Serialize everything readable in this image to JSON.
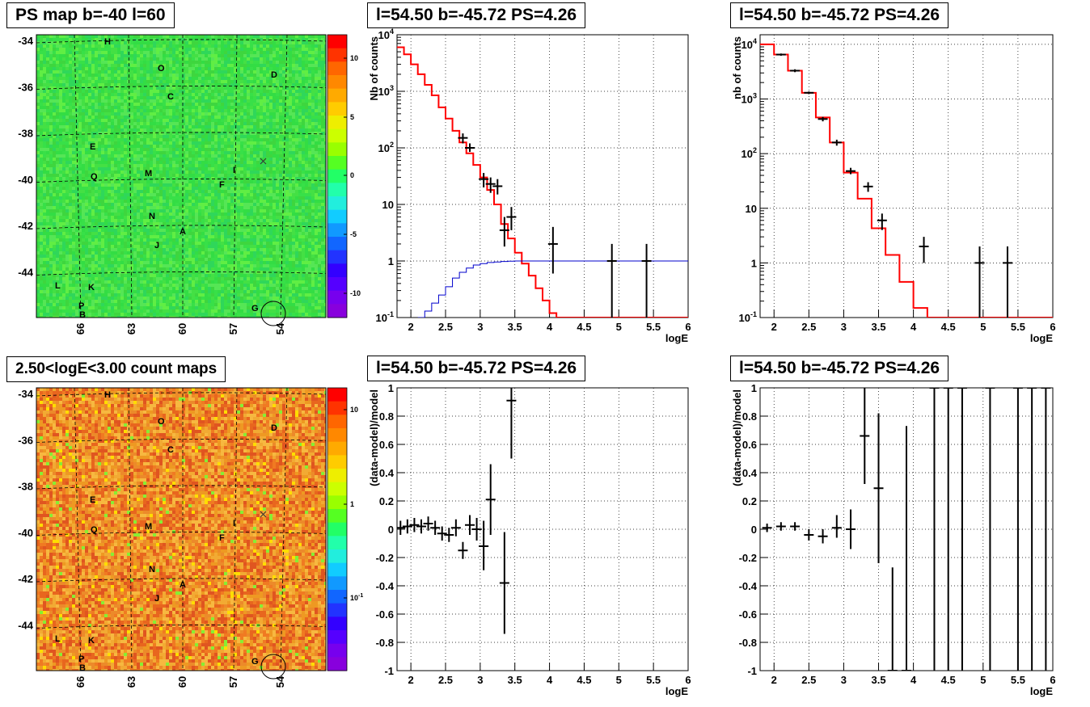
{
  "panels": {
    "map_top_title": "PS map b=-40 l=60",
    "spec_left_title": "l=54.50 b=-45.72 PS=4.26",
    "spec_right_title": "l=54.50 b=-45.72 PS=4.26",
    "map_bottom_title": "2.50<logE<3.00 count maps",
    "resid_left_title": "l=54.50 b=-45.72 PS=4.26",
    "resid_right_title": "l=54.50 b=-45.72 PS=4.26"
  },
  "colors": {
    "model_line": "#ff0000",
    "exposure_line": "#0000cc",
    "data_points": "#000000",
    "map_top_bg": "#33dd33",
    "map_bottom_bg": "#ee8822"
  },
  "chart_data": [
    {
      "id": "map_top",
      "type": "heatmap",
      "title": "PS map b=-40 l=60",
      "x_tick_labels": [
        "66",
        "63",
        "60",
        "57",
        "54"
      ],
      "y_tick_labels": [
        "-34",
        "-36",
        "-38",
        "-40",
        "-42",
        "-44"
      ],
      "colorbar_ticks": [
        "10",
        "5",
        "0",
        "-5",
        "-10"
      ],
      "colorbar_scale": "linear",
      "colorbar_range": [
        -13,
        13
      ],
      "markers": [
        "H",
        "O",
        "D",
        "C",
        "E",
        "M",
        "I",
        "Q",
        "F",
        "N",
        "A",
        "J",
        "L",
        "K",
        "P",
        "B",
        "G"
      ]
    },
    {
      "id": "map_bottom",
      "type": "heatmap",
      "title": "2.50<logE<3.00 count maps",
      "x_tick_labels": [
        "66",
        "63",
        "60",
        "57",
        "54"
      ],
      "y_tick_labels": [
        "-34",
        "-36",
        "-38",
        "-40",
        "-42",
        "-44"
      ],
      "colorbar_ticks": [
        "10",
        "1",
        "10-1"
      ],
      "colorbar_scale": "log",
      "markers": [
        "H",
        "O",
        "D",
        "C",
        "E",
        "M",
        "I",
        "Q",
        "F",
        "N",
        "A",
        "J",
        "L",
        "K",
        "P",
        "B",
        "G"
      ]
    },
    {
      "id": "spec_left",
      "type": "line",
      "title": "l=54.50 b=-45.72 PS=4.26",
      "xlabel": "logE",
      "ylabel": "Nb of counts",
      "xlim": [
        1.8,
        6.0
      ],
      "ylim": [
        0.1,
        10000
      ],
      "yscale": "log",
      "x_ticks": [
        "2",
        "2.5",
        "3",
        "3.5",
        "4",
        "4.5",
        "5",
        "5.5",
        "6"
      ],
      "y_ticks": [
        "10-1",
        "1",
        "10",
        "102",
        "103",
        "104"
      ],
      "grid": true,
      "series": [
        {
          "style": "step",
          "color": "red",
          "x": [
            1.8,
            1.9,
            2.0,
            2.1,
            2.2,
            2.3,
            2.4,
            2.5,
            2.6,
            2.7,
            2.8,
            2.9,
            3.0,
            3.1,
            3.2,
            3.3,
            3.4,
            3.5,
            3.6,
            3.7,
            3.8,
            3.9,
            4.0,
            4.1
          ],
          "values": [
            6000,
            4500,
            3000,
            2000,
            1300,
            850,
            520,
            330,
            200,
            125,
            80,
            50,
            30,
            18,
            10,
            4.5,
            2.5,
            1.4,
            0.9,
            0.55,
            0.33,
            0.2,
            0.12,
            0.1
          ]
        },
        {
          "style": "step",
          "color": "blue",
          "x": [
            2.1,
            2.2,
            2.3,
            2.4,
            2.5,
            2.6,
            2.7,
            2.8,
            2.9,
            3.0,
            3.1,
            3.2,
            3.3,
            3.4,
            3.5,
            6.0
          ],
          "values": [
            0.1,
            0.13,
            0.18,
            0.25,
            0.35,
            0.5,
            0.63,
            0.75,
            0.85,
            0.9,
            0.94,
            0.96,
            0.98,
            0.99,
            1.0,
            1.0
          ]
        },
        {
          "style": "points",
          "color": "black",
          "x": [
            2.75,
            2.85,
            3.05,
            3.15,
            3.25,
            3.35,
            3.45,
            4.05,
            4.9,
            5.4
          ],
          "values": [
            150,
            100,
            28,
            23,
            21,
            3.5,
            6,
            2,
            1,
            1
          ],
          "lo": [
            120,
            85,
            20,
            16,
            15,
            1.8,
            3.5,
            0.6,
            0.1,
            0.1
          ],
          "hi": [
            180,
            120,
            36,
            30,
            28,
            6,
            9,
            4,
            2,
            2
          ]
        }
      ]
    },
    {
      "id": "spec_right",
      "type": "line",
      "title": "l=54.50 b=-45.72 PS=4.26",
      "xlabel": "logE",
      "ylabel": "nb of counts",
      "xlim": [
        1.8,
        6.0
      ],
      "ylim": [
        0.1,
        15000
      ],
      "yscale": "log",
      "x_ticks": [
        "2",
        "2.5",
        "3",
        "3.5",
        "4",
        "4.5",
        "5",
        "5.5",
        "6"
      ],
      "y_ticks": [
        "10-1",
        "1",
        "10",
        "102",
        "103",
        "104"
      ],
      "grid": true,
      "series": [
        {
          "style": "step",
          "color": "red",
          "x": [
            1.8,
            2.0,
            2.2,
            2.4,
            2.6,
            2.8,
            3.0,
            3.2,
            3.4,
            3.6,
            3.8,
            4.0,
            4.2
          ],
          "values": [
            10000,
            6500,
            3300,
            1300,
            460,
            160,
            45,
            15,
            4.3,
            1.4,
            0.45,
            0.15,
            0.1
          ]
        },
        {
          "style": "points",
          "color": "black",
          "x": [
            2.1,
            2.3,
            2.5,
            2.7,
            2.9,
            3.1,
            3.35,
            3.55,
            4.15,
            4.95,
            5.35
          ],
          "values": [
            6500,
            3300,
            1300,
            430,
            160,
            48,
            25,
            6,
            2,
            1,
            1
          ],
          "lo": [
            6200,
            3100,
            1230,
            390,
            140,
            42,
            20,
            4,
            1,
            0.1,
            0.1
          ],
          "hi": [
            6800,
            3500,
            1370,
            470,
            180,
            55,
            30,
            8,
            3,
            2,
            2
          ]
        }
      ]
    },
    {
      "id": "resid_left",
      "type": "scatter",
      "title": "l=54.50 b=-45.72 PS=4.26",
      "xlabel": "logE",
      "ylabel": "(data-model)/model",
      "xlim": [
        1.8,
        6.0
      ],
      "ylim": [
        -1,
        1
      ],
      "x_ticks": [
        "2",
        "2.5",
        "3",
        "3.5",
        "4",
        "4.5",
        "5",
        "5.5",
        "6"
      ],
      "y_ticks": [
        "-1",
        "-0.8",
        "-0.6",
        "-0.4",
        "-0.2",
        "0",
        "0.2",
        "0.4",
        "0.6",
        "0.8",
        "1"
      ],
      "grid": true,
      "series": [
        {
          "style": "points",
          "color": "black",
          "x": [
            1.85,
            1.95,
            2.05,
            2.15,
            2.25,
            2.35,
            2.45,
            2.55,
            2.65,
            2.75,
            2.85,
            2.95,
            3.05,
            3.15,
            3.35,
            3.45
          ],
          "values": [
            0.01,
            0.02,
            0.03,
            0.02,
            0.04,
            0.01,
            -0.03,
            -0.04,
            0.01,
            -0.15,
            0.03,
            0.0,
            -0.12,
            0.21,
            -0.38,
            0.91
          ],
          "lo": [
            -0.04,
            -0.03,
            -0.02,
            -0.03,
            -0.01,
            -0.04,
            -0.08,
            -0.09,
            -0.05,
            -0.21,
            -0.04,
            -0.08,
            -0.29,
            -0.04,
            -0.74,
            0.5
          ],
          "hi": [
            0.06,
            0.07,
            0.08,
            0.07,
            0.09,
            0.06,
            0.02,
            0.01,
            0.07,
            -0.09,
            0.1,
            0.08,
            0.06,
            0.46,
            -0.02,
            1.0
          ]
        }
      ]
    },
    {
      "id": "resid_right",
      "type": "scatter",
      "title": "l=54.50 b=-45.72 PS=4.26",
      "xlabel": "logE",
      "ylabel": "(data-model)/model",
      "xlim": [
        1.8,
        6.0
      ],
      "ylim": [
        -1,
        1
      ],
      "x_ticks": [
        "2",
        "2.5",
        "3",
        "3.5",
        "4",
        "4.5",
        "5",
        "5.5",
        "6"
      ],
      "y_ticks": [
        "-1",
        "-0.8",
        "-0.6",
        "-0.4",
        "-0.2",
        "0",
        "0.2",
        "0.4",
        "0.6",
        "0.8",
        "1"
      ],
      "grid": true,
      "series": [
        {
          "style": "points",
          "color": "black",
          "x": [
            1.9,
            2.1,
            2.3,
            2.5,
            2.7,
            2.9,
            3.1,
            3.3,
            3.5,
            3.7,
            3.9,
            4.3,
            4.5,
            4.7,
            5.1,
            5.5,
            5.7,
            5.9
          ],
          "values": [
            0.01,
            0.02,
            0.02,
            -0.04,
            -0.05,
            0.01,
            0.0,
            0.66,
            0.29,
            -1.0,
            -1.0,
            1.0,
            1.0,
            1.0,
            1.0,
            1.0,
            1.0,
            1.0
          ],
          "lo": [
            -0.02,
            -0.01,
            -0.01,
            -0.08,
            -0.1,
            -0.06,
            -0.14,
            0.32,
            -0.24,
            -1.0,
            -1.0,
            -1.0,
            -1.0,
            -1.0,
            -1.0,
            -1.0,
            -1.0,
            -1.0
          ],
          "hi": [
            0.04,
            0.05,
            0.05,
            0.0,
            0.0,
            0.1,
            0.14,
            1.0,
            0.82,
            -0.27,
            0.73,
            1.0,
            1.0,
            1.0,
            1.0,
            1.0,
            1.0,
            1.0
          ]
        }
      ]
    }
  ]
}
